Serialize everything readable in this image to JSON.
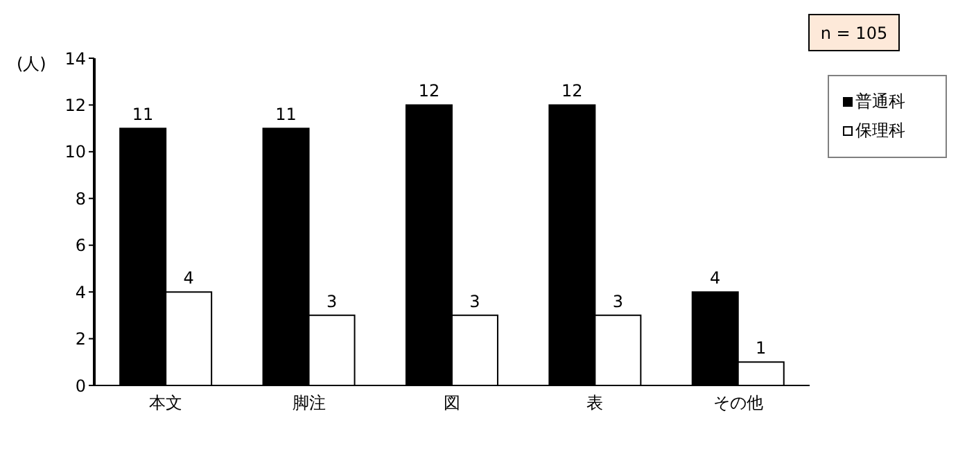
{
  "chart_data": {
    "type": "bar",
    "ylabel": "(人)",
    "annotations": [
      "n = 105"
    ],
    "categories": [
      "本文",
      "脚注",
      "図",
      "表",
      "その他"
    ],
    "series": [
      {
        "name": "普通科",
        "color": "#000000",
        "values": [
          11,
          11,
          12,
          12,
          4
        ]
      },
      {
        "name": "保理科",
        "color": "#ffffff",
        "values": [
          4,
          3,
          3,
          3,
          1
        ]
      }
    ],
    "ylim": [
      0,
      14
    ],
    "yticks": [
      0,
      2,
      4,
      6,
      8,
      10,
      12,
      14
    ],
    "grid": false,
    "legend": "top right",
    "data_labels": true
  }
}
